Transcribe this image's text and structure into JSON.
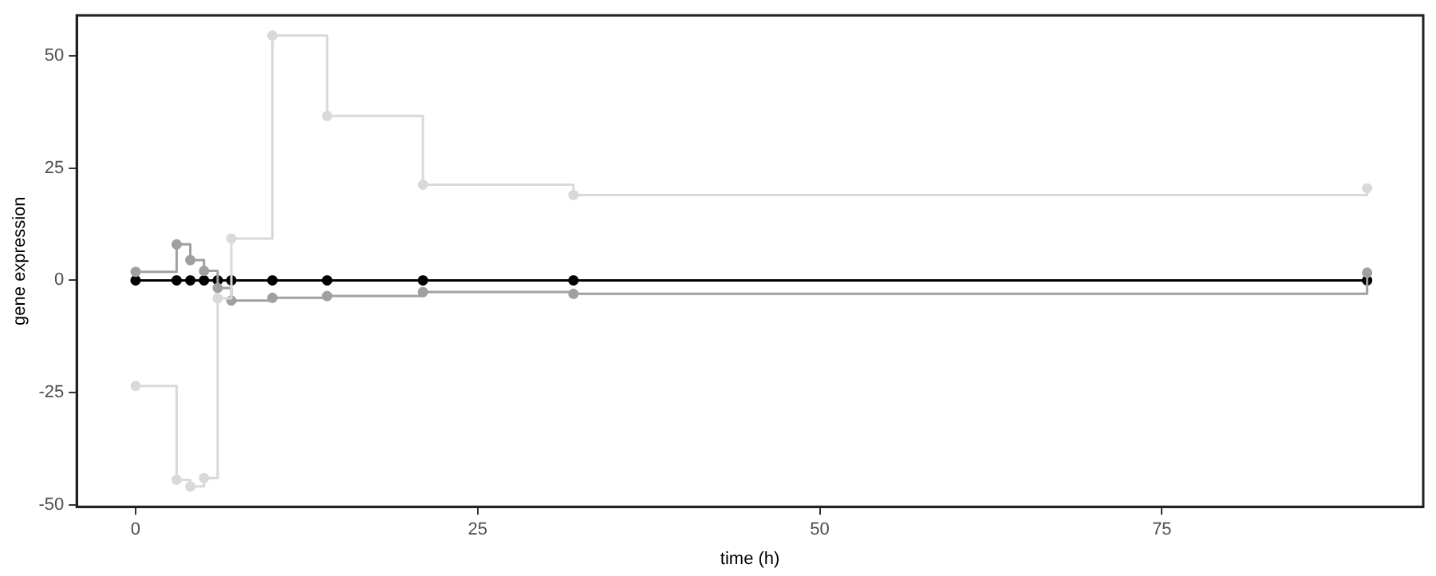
{
  "chart_data": {
    "type": "step",
    "xlabel": "time (h)",
    "ylabel": "gene expression",
    "x": [
      0,
      3,
      4,
      5,
      6,
      7,
      10,
      14,
      21,
      32,
      90
    ],
    "series": [
      {
        "color": "#d9d9d9",
        "values": [
          -23.5,
          -44.4,
          -45.9,
          -44,
          -4,
          9.3,
          54.5,
          36.6,
          21.3,
          19,
          20.5
        ]
      },
      {
        "color": "#a0a0a0",
        "values": [
          1.9,
          8,
          4.5,
          2.1,
          -1.7,
          -4.5,
          -3.9,
          -3.5,
          -2.6,
          -3,
          1.7
        ]
      },
      {
        "color": "#000000",
        "values": [
          0,
          0,
          0,
          0,
          0,
          0,
          0,
          0,
          0,
          0,
          0
        ]
      }
    ],
    "xlim": [
      -4.3,
      94.1
    ],
    "ylim": [
      -50.4,
      59
    ],
    "xticks": [
      0,
      25,
      50,
      75
    ],
    "yticks": [
      -50,
      -25,
      0,
      25,
      50
    ],
    "grid": false,
    "legend": false,
    "marker": "circle",
    "line_style": "solid"
  }
}
